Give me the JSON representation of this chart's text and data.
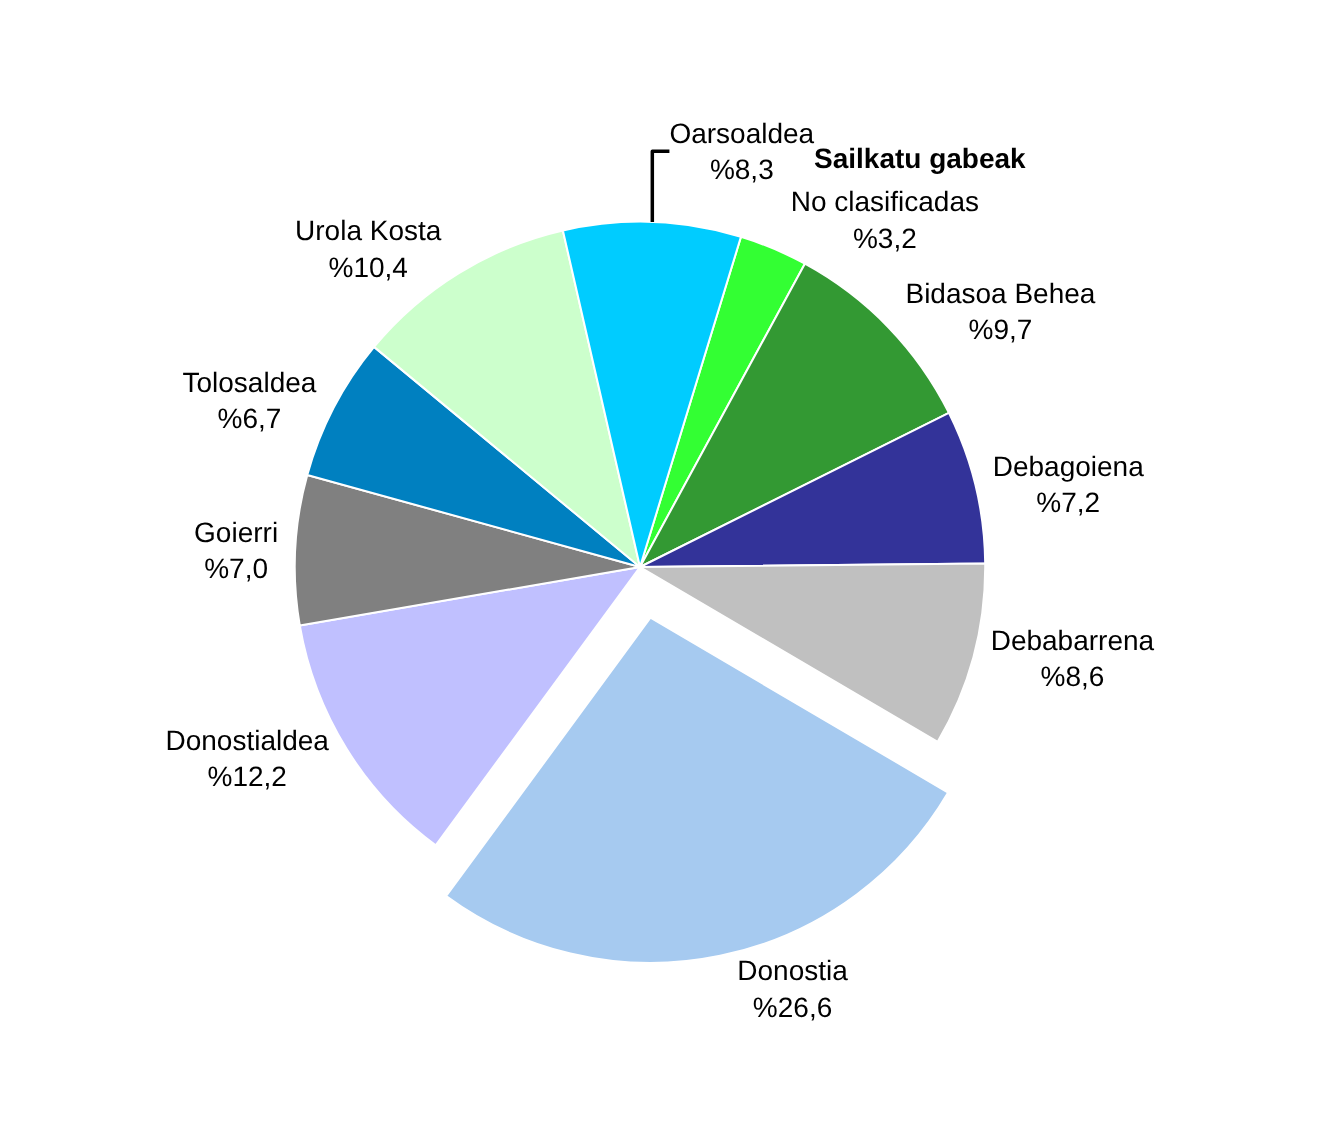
{
  "chart_data": {
    "type": "pie",
    "categories": [
      "No clasificadas",
      "Bidasoa Behea",
      "Debagoiena",
      "Debabarrena",
      "Donostia",
      "Donostialdea",
      "Goierri",
      "Tolosaldea",
      "Urola Kosta",
      "Oarsoaldea"
    ],
    "values": [
      3.2,
      9.7,
      7.2,
      8.6,
      26.6,
      12.2,
      7.0,
      6.7,
      10.4,
      8.3
    ],
    "value_labels": [
      "%3,2",
      "%9,7",
      "%7,2",
      "%8,6",
      "%26,6",
      "%12,2",
      "%7,0",
      "%6,7",
      "%10,4",
      "%8,3"
    ],
    "colors": [
      "#33ff33",
      "#339933",
      "#333399",
      "#c0c0c0",
      "#a6caf0",
      "#c0c0ff",
      "#808080",
      "#0080c0",
      "#ccffcc",
      "#00ccff"
    ],
    "annotations": [
      "Sailkatu gabeak"
    ],
    "legend": false
  }
}
